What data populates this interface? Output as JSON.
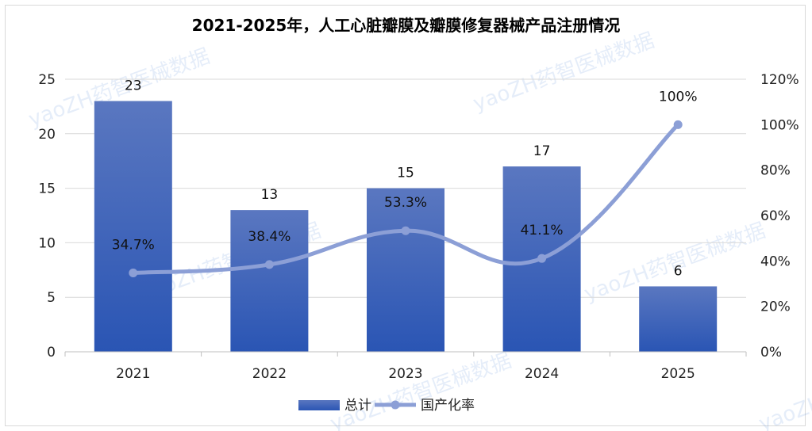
{
  "chart_data": {
    "type": "bar",
    "title": "2021-2025年，人工心脏瓣膜及瓣膜修复器械产品注册情况",
    "categories": [
      "2021",
      "2022",
      "2023",
      "2024",
      "2025"
    ],
    "series": [
      {
        "name": "总计",
        "type": "bar",
        "axis": "left",
        "values": [
          23,
          13,
          15,
          17,
          6
        ]
      },
      {
        "name": "国产化率",
        "type": "line",
        "axis": "right",
        "values": [
          34.7,
          38.4,
          53.3,
          41.1,
          100
        ]
      }
    ],
    "bar_labels": [
      "23",
      "13",
      "15",
      "17",
      "6"
    ],
    "line_labels": [
      "34.7%",
      "38.4%",
      "53.3%",
      "41.1%",
      "100%"
    ],
    "y_left": {
      "range": [
        0,
        25
      ],
      "ticks": [
        "0",
        "5",
        "10",
        "15",
        "20",
        "25"
      ]
    },
    "y_right": {
      "range": [
        0,
        120
      ],
      "ticks": [
        "0%",
        "20%",
        "40%",
        "60%",
        "80%",
        "100%",
        "120%"
      ]
    },
    "grid": true,
    "legend_position": "bottom",
    "colors": {
      "bar_top": "#5a77c0",
      "bar_bottom": "#2a55b4",
      "line": "#8c9fd6",
      "grid": "#d9d9d9"
    }
  },
  "watermark": {
    "text": "yaoZH药智医械数据"
  }
}
